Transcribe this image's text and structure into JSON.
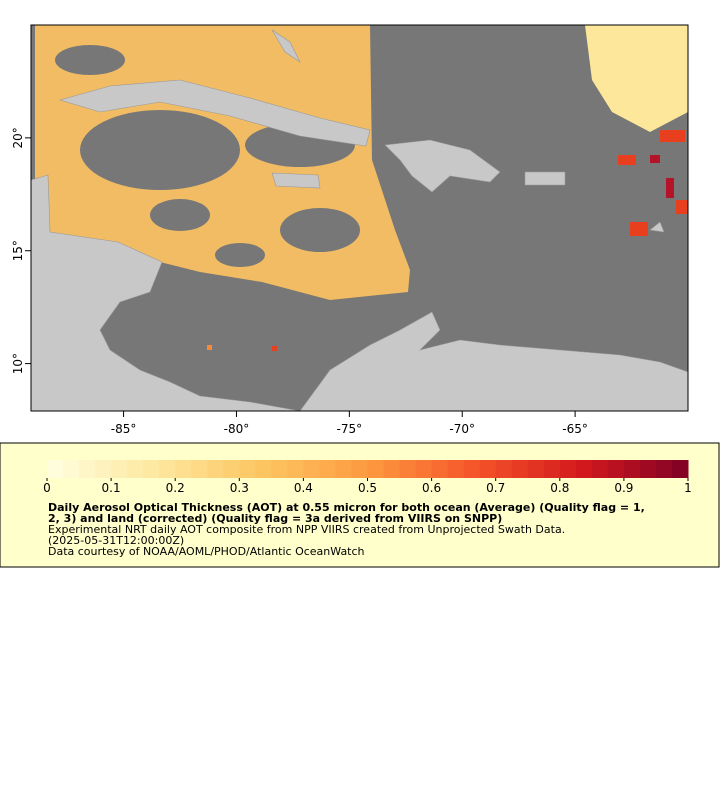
{
  "map": {
    "lon_range": [
      -89.1,
      -60.0
    ],
    "lat_range": [
      7.9,
      25.0
    ],
    "lon_ticks": [
      {
        "value": -85,
        "label": "-85°"
      },
      {
        "value": -80,
        "label": "-80°"
      },
      {
        "value": -75,
        "label": "-75°"
      },
      {
        "value": -70,
        "label": "-70°"
      },
      {
        "value": -65,
        "label": "-65°"
      }
    ],
    "lat_ticks": [
      {
        "value": 10,
        "label": "10°"
      },
      {
        "value": 15,
        "label": "15°"
      },
      {
        "value": 20,
        "label": "20°"
      }
    ]
  },
  "colorbar": {
    "range": [
      0,
      1
    ],
    "ticks": [
      0,
      0.1,
      0.2,
      0.3,
      0.4,
      0.5,
      0.6,
      0.7,
      0.8,
      0.9,
      1
    ],
    "colors": [
      "#ffffe0",
      "#fee8a0",
      "#fdc662",
      "#fd9a40",
      "#f5552a",
      "#d4191c",
      "#800026"
    ]
  },
  "legend": {
    "title_lines": [
      "Daily Aerosol Optical Thickness (AOT) at 0.55 micron for both ocean (Average) (Quality flag = 1,",
      "2, 3) and land (corrected) (Quality flag = 3a derived from VIIRS on SNPP)"
    ],
    "lines": [
      "Experimental NRT daily AOT composite from NPP VIIRS created from Unprojected Swath Data.",
      "(2025-05-31T12:00:00Z)",
      "Data courtesy of NOAA/AOML/PHOD/Atlantic OceanWatch"
    ]
  }
}
